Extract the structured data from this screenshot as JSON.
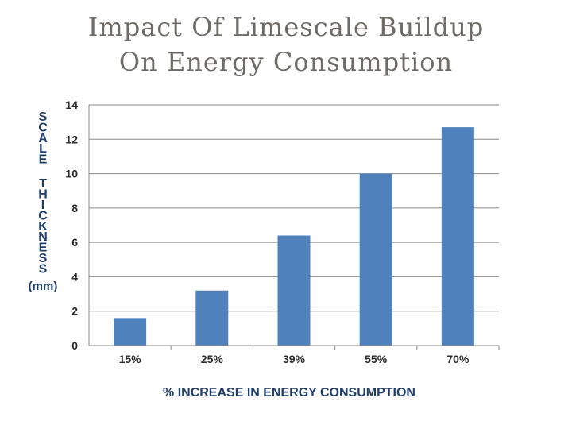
{
  "chart_data": {
    "type": "bar",
    "title_lines": [
      "Impact Of Limescale Buildup",
      "On Energy Consumption"
    ],
    "categories": [
      "15%",
      "25%",
      "39%",
      "55%",
      "70%"
    ],
    "series": [
      {
        "name": "Scale Thickness",
        "values": [
          1.6,
          3.2,
          6.4,
          10.0,
          12.7
        ]
      }
    ],
    "xlabel": "% INCREASE IN ENERGY CONSUMPTION",
    "ylabel_words": [
      "SCALE",
      "THICKNESS"
    ],
    "ylabel_unit": "(mm)",
    "ylim": [
      0,
      14
    ],
    "yticks": [
      0,
      2,
      4,
      6,
      8,
      10,
      12,
      14
    ],
    "grid": true,
    "colors": {
      "bar": "#4f81bd",
      "grid": "#8a8a8a",
      "axis_title": "#1f3f6a",
      "title": "#6e6a66"
    }
  }
}
